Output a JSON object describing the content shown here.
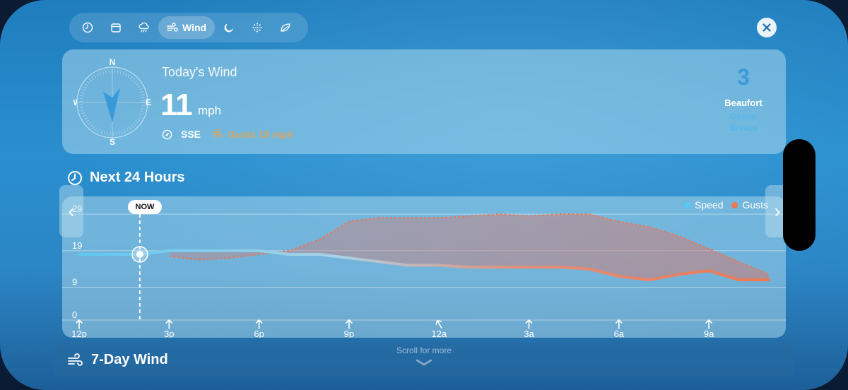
{
  "tabs": [
    {
      "icon": "clock-icon",
      "label": ""
    },
    {
      "icon": "calendar-icon",
      "label": ""
    },
    {
      "icon": "rain-cloud-icon",
      "label": ""
    },
    {
      "icon": "wind-icon",
      "label": "Wind",
      "active": true
    },
    {
      "icon": "moon-icon",
      "label": ""
    },
    {
      "icon": "snowflake-icon",
      "label": ""
    },
    {
      "icon": "leaf-icon",
      "label": ""
    }
  ],
  "today": {
    "title": "Today's Wind",
    "speed": "11",
    "unit": "mph",
    "direction": "SSE",
    "gusts": "Gusts 19 mph",
    "compass": {
      "n": "N",
      "e": "E",
      "s": "S",
      "w": "W"
    },
    "beaufort_number": "3",
    "beaufort_label": "Beaufort",
    "beaufort_desc_1": "Gentle",
    "beaufort_desc_2": "Breeze"
  },
  "section_title": "Next 24 Hours",
  "now_label": "NOW",
  "legend": {
    "speed": "Speed",
    "gusts": "Gusts"
  },
  "colors": {
    "speed": "#58c8f4",
    "gusts": "#ef7650",
    "accent_beaufort": "#3a9ad8"
  },
  "scroll_hint": "Scroll for more",
  "seven_day_title": "7-Day Wind",
  "chart_data": {
    "type": "area",
    "x": [
      "12p",
      "1p",
      "2p",
      "3p",
      "4p",
      "5p",
      "6p",
      "7p",
      "8p",
      "9p",
      "10p",
      "11p",
      "12a",
      "1a",
      "2a",
      "3a",
      "4a",
      "5a",
      "6a",
      "7a",
      "8a",
      "9a",
      "10a",
      "11a"
    ],
    "tick_labels": [
      "12p",
      "3p",
      "6p",
      "9p",
      "12a",
      "3a",
      "6a",
      "9a"
    ],
    "y_ticks": [
      0,
      9,
      19,
      29
    ],
    "ylim": [
      0,
      30
    ],
    "now_index": 2,
    "series": [
      {
        "name": "Speed",
        "values": [
          18,
          18,
          18,
          19,
          19,
          19,
          19,
          18,
          18,
          17,
          16,
          15,
          15,
          14.5,
          14.5,
          14.5,
          14.5,
          14,
          12,
          11,
          12.5,
          13.5,
          11,
          11
        ]
      },
      {
        "name": "Gusts",
        "values": [
          null,
          null,
          null,
          17.5,
          16.5,
          17,
          18,
          19,
          22,
          27,
          28,
          28,
          28,
          28.5,
          29,
          28.5,
          29,
          29,
          27,
          25.5,
          23,
          19.5,
          16,
          12.5
        ]
      }
    ],
    "arrow_directions_deg": [
      0,
      0,
      0,
      0,
      -30,
      0,
      0,
      0
    ],
    "grid": true,
    "legend_position": "top-right"
  }
}
